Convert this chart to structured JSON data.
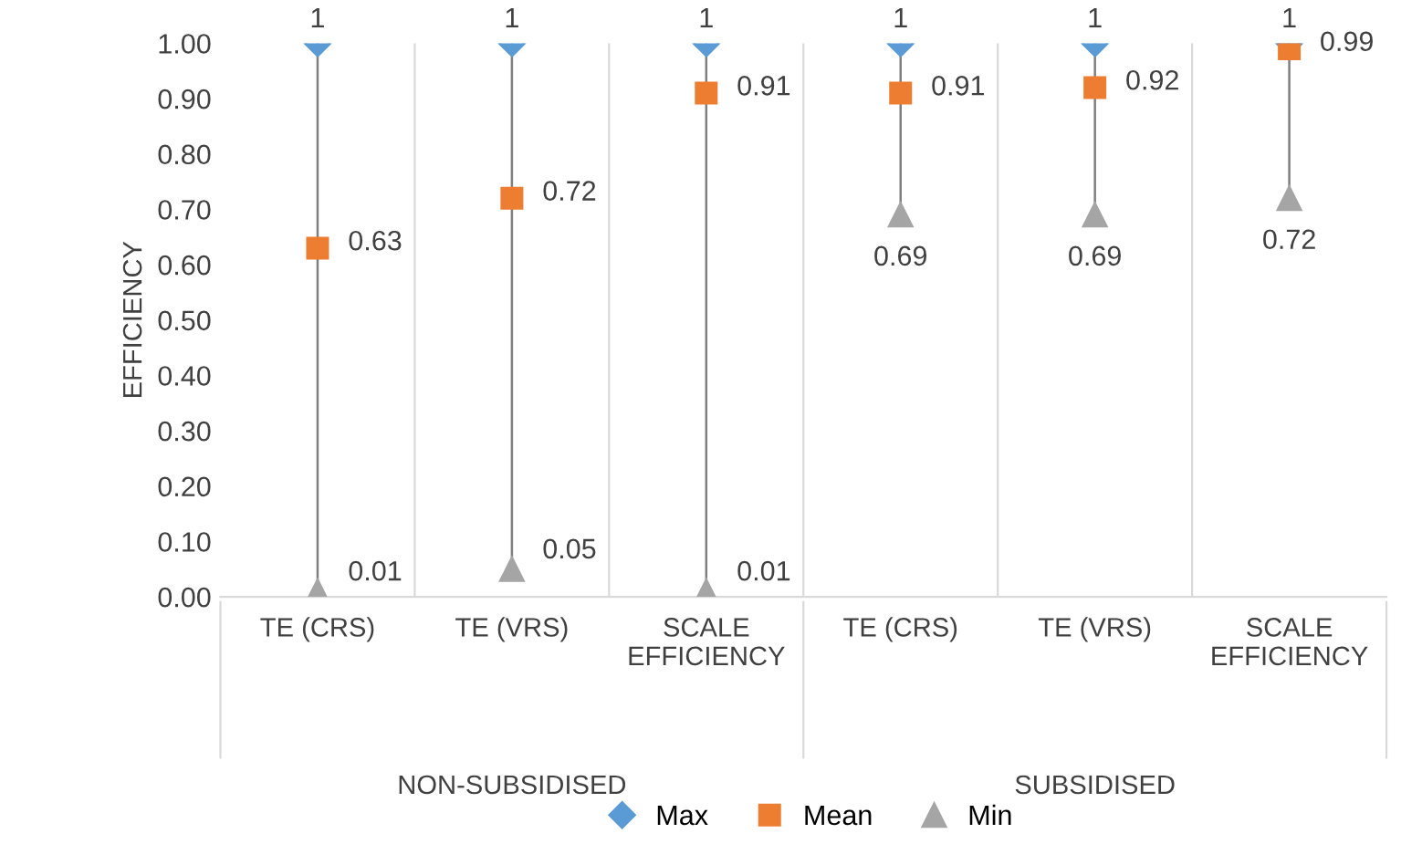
{
  "chart_data": {
    "type": "scatter",
    "ylabel": "EFFICIENCY",
    "categories": [
      "TE (CRS)",
      "TE (VRS)",
      "SCALE\nEFFICIENCY",
      "TE (CRS)",
      "TE (VRS)",
      "SCALE\nEFFICIENCY"
    ],
    "series": [
      {
        "name": "Max",
        "color": "#5b9bd5",
        "marker": "diamond",
        "values": [
          1,
          1,
          1,
          1,
          1,
          1
        ]
      },
      {
        "name": "Mean",
        "color": "#ed7d31",
        "marker": "square",
        "values": [
          0.63,
          0.72,
          0.91,
          0.91,
          0.92,
          0.99
        ]
      },
      {
        "name": "Min",
        "color": "#a5a5a5",
        "marker": "triangle",
        "values": [
          0.01,
          0.05,
          0.01,
          0.69,
          0.69,
          0.72
        ]
      }
    ],
    "ylim": [
      0,
      1
    ],
    "yticks": [
      {
        "value": 0,
        "label": "0.00"
      },
      {
        "value": 0.1,
        "label": "0.10"
      },
      {
        "value": 0.2,
        "label": "0.20"
      },
      {
        "value": 0.3,
        "label": "0.30"
      },
      {
        "value": 0.4,
        "label": "0.40"
      },
      {
        "value": 0.5,
        "label": "0.50"
      },
      {
        "value": 0.6,
        "label": "0.60"
      },
      {
        "value": 0.7,
        "label": "0.70"
      },
      {
        "value": 0.8,
        "label": "0.80"
      },
      {
        "value": 0.9,
        "label": "0.90"
      },
      {
        "value": 1,
        "label": "1.00"
      }
    ],
    "grid": "x",
    "legend": "bottom",
    "data_labels": true,
    "annotations": [
      "NON-SUBSIDISED",
      "SUBSIDISED"
    ]
  }
}
